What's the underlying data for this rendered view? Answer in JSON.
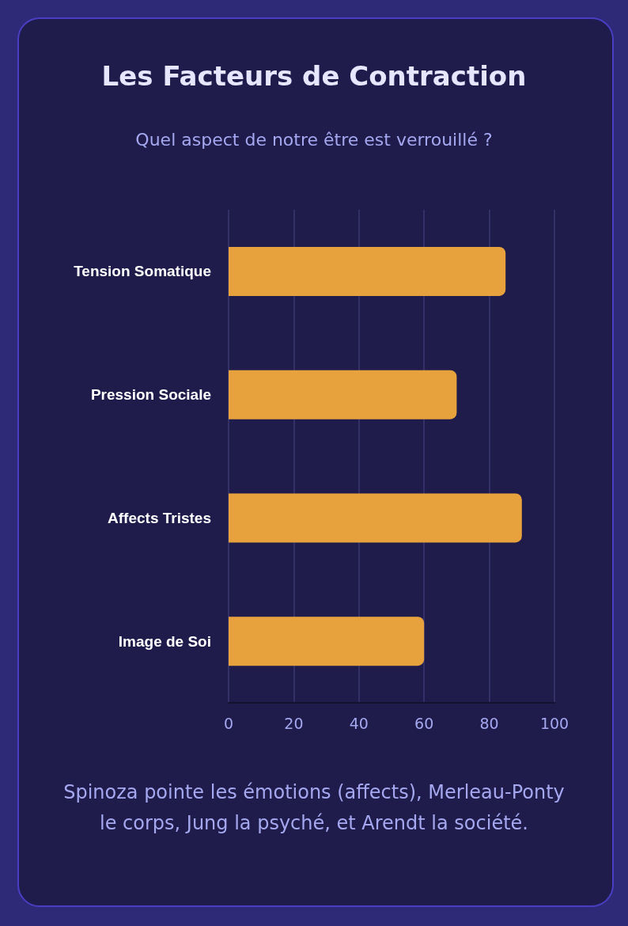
{
  "chart_data": {
    "type": "bar",
    "orientation": "horizontal",
    "title": "Les Facteurs de Contraction",
    "subtitle": "Quel aspect de notre être est verrouillé ?",
    "categories": [
      "Tension Somatique",
      "Pression Sociale",
      "Affects Tristes",
      "Image de Soi"
    ],
    "values": [
      85,
      70,
      90,
      60
    ],
    "color": "#e8a23d",
    "xlim": [
      0,
      100
    ],
    "xticks": [
      0,
      20,
      40,
      60,
      80,
      100
    ],
    "grid": "x",
    "annotations": [
      "Spinoza pointe les émotions (affects), Merleau-Ponty le corps, Jung la psyché, et Arendt la société."
    ]
  }
}
